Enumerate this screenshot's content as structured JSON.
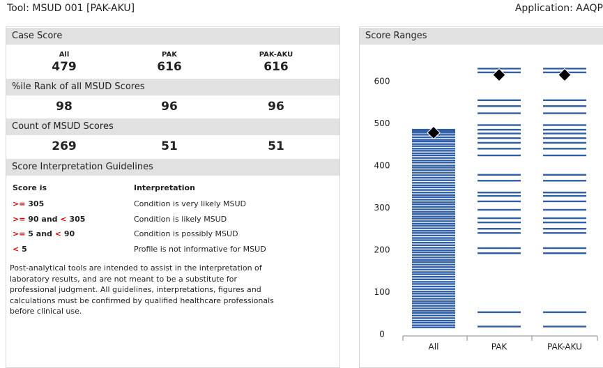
{
  "header": {
    "tool": "Tool: MSUD 001 [PAK-AKU]",
    "application": "Application: AAQP"
  },
  "case_score": {
    "title": "Case Score",
    "columns": [
      "All",
      "PAK",
      "PAK-AKU"
    ],
    "values": [
      479,
      616,
      616
    ]
  },
  "percentile_rank": {
    "title": "%ile Rank of all MSUD Scores",
    "values": [
      98,
      96,
      96
    ]
  },
  "count": {
    "title": "Count of MSUD Scores",
    "values": [
      269,
      51,
      51
    ]
  },
  "guidelines": {
    "title": "Score Interpretation Guidelines",
    "headers": [
      "Score is",
      "Interpretation"
    ],
    "rows": [
      {
        "parts": [
          ">=",
          "305"
        ],
        "interpretation": "Condition is very likely MSUD"
      },
      {
        "parts": [
          ">=",
          "90 and",
          "<",
          "305"
        ],
        "interpretation": "Condition is likely MSUD"
      },
      {
        "parts": [
          ">=",
          "5 and",
          "<",
          "90"
        ],
        "interpretation": "Condition is possibly MSUD"
      },
      {
        "parts": [
          "<",
          "5"
        ],
        "interpretation": "Profile is not informative for MSUD"
      }
    ]
  },
  "disclaimer": [
    "Post-analytical tools are intended to assist in the interpretation of",
    "laboratory results, and are not meant to be a substitute for",
    "professional judgment. All guidelines, interpretations, figures and",
    "calculations must be confirmed by qualified healthcare professionals",
    "before clinical use."
  ],
  "chart_data": {
    "type": "strip",
    "title": "Score Ranges",
    "categories": [
      "All",
      "PAK",
      "PAK-AKU"
    ],
    "scores": [
      [
        486,
        483,
        479,
        474,
        468,
        462,
        458,
        452,
        447,
        441,
        436,
        430,
        425,
        419,
        413,
        408,
        401,
        396,
        390,
        384,
        378,
        372,
        366,
        360,
        354,
        349,
        343,
        337,
        331,
        326,
        320,
        314,
        309,
        303,
        297,
        291,
        286,
        280,
        275,
        269,
        263,
        258,
        252,
        246,
        241,
        235,
        229,
        224,
        218,
        212,
        206,
        200,
        195,
        189,
        183,
        177,
        172,
        166,
        160,
        154,
        148,
        143,
        137,
        131,
        125,
        120,
        114,
        108,
        102,
        97,
        91,
        85,
        79,
        74,
        68,
        62,
        56,
        51,
        45,
        39,
        33,
        28,
        22,
        17
      ],
      [
        631,
        622,
        556,
        542,
        525,
        497,
        486,
        477,
        466,
        455,
        441,
        425,
        379,
        365,
        337,
        329,
        316,
        296,
        276,
        266,
        251,
        241,
        205,
        193,
        53,
        19
      ],
      [
        631,
        622,
        556,
        542,
        525,
        497,
        486,
        477,
        466,
        455,
        441,
        425,
        379,
        365,
        337,
        329,
        316,
        296,
        276,
        266,
        251,
        241,
        205,
        193,
        53,
        19
      ]
    ],
    "ylim": [
      0,
      640
    ],
    "yticks": [
      0,
      100,
      200,
      300,
      400,
      500,
      600
    ],
    "color": "#2f5ea8",
    "marker_color": "#000000"
  }
}
